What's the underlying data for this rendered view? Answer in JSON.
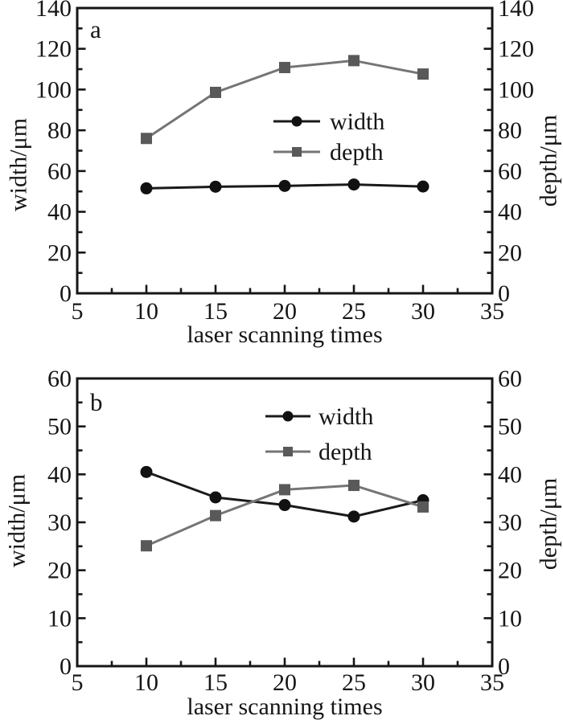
{
  "figure": {
    "background": "#ffffff",
    "ink_color": "#161616",
    "panels": [
      "a",
      "b"
    ]
  },
  "chart_data": [
    {
      "type": "line",
      "panel_label": "a",
      "xlabel": "laser scanning times",
      "ylabel_left": "width/μm",
      "ylabel_right": "depth/μm",
      "xlim": [
        5,
        35
      ],
      "xticks": [
        5,
        10,
        15,
        20,
        25,
        30,
        35
      ],
      "x_minor": [
        7.5,
        12.5,
        17.5,
        22.5,
        27.5,
        32.5
      ],
      "ylim": [
        0,
        140
      ],
      "yticks": [
        0,
        20,
        40,
        60,
        80,
        100,
        120,
        140
      ],
      "y_minor": [
        10,
        30,
        50,
        70,
        90,
        110,
        130
      ],
      "grid": false,
      "legend_position": "center",
      "x": [
        10,
        15,
        20,
        25,
        30
      ],
      "series": [
        {
          "name": "width",
          "marker": "circle",
          "line_color": "#1a1a1a",
          "marker_color": "#111111",
          "values": [
            51.5,
            52.3,
            52.7,
            53.4,
            52.4
          ]
        },
        {
          "name": "depth",
          "marker": "square",
          "line_color": "#757575",
          "marker_color": "#595959",
          "values": [
            76.0,
            98.6,
            110.8,
            114.2,
            107.6
          ]
        }
      ]
    },
    {
      "type": "line",
      "panel_label": "b",
      "xlabel": "laser scanning times",
      "ylabel_left": "width/μm",
      "ylabel_right": "depth/μm",
      "xlim": [
        5,
        35
      ],
      "xticks": [
        5,
        10,
        15,
        20,
        25,
        30,
        35
      ],
      "x_minor": [
        7.5,
        12.5,
        17.5,
        22.5,
        27.5,
        32.5
      ],
      "ylim": [
        0,
        60
      ],
      "yticks": [
        0,
        10,
        20,
        30,
        40,
        50,
        60
      ],
      "y_minor": [
        5,
        15,
        25,
        35,
        45,
        55
      ],
      "grid": false,
      "legend_position": "top-center",
      "x": [
        10,
        15,
        20,
        25,
        30
      ],
      "series": [
        {
          "name": "width",
          "marker": "circle",
          "line_color": "#1a1a1a",
          "marker_color": "#111111",
          "values": [
            40.5,
            35.2,
            33.6,
            31.2,
            34.6
          ]
        },
        {
          "name": "depth",
          "marker": "square",
          "line_color": "#757575",
          "marker_color": "#595959",
          "values": [
            25.1,
            31.4,
            36.8,
            37.7,
            33.2
          ]
        }
      ]
    }
  ]
}
